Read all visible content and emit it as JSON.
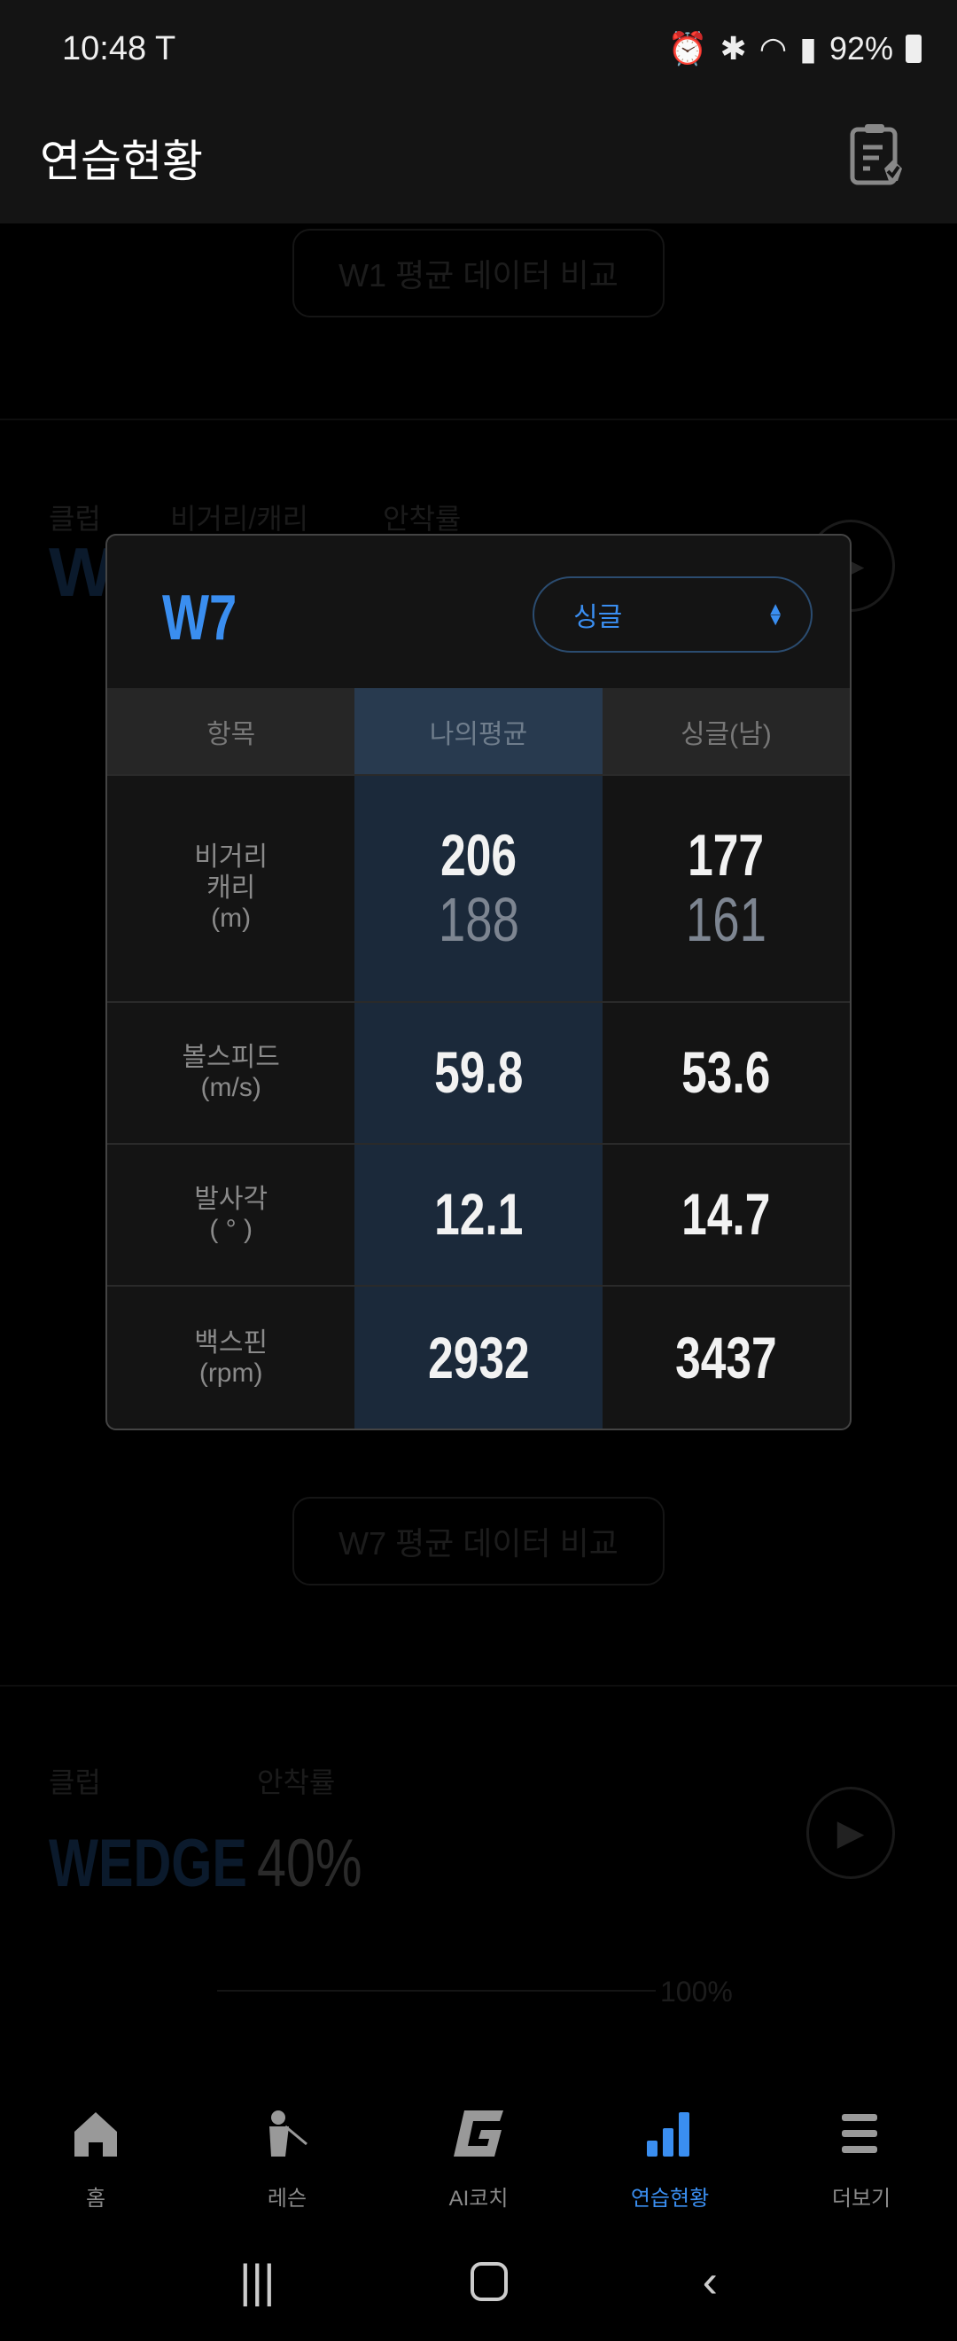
{
  "status_bar": {
    "time": "10:48",
    "battery": "92%",
    "icons": [
      "tesla-icon",
      "alarm-icon",
      "bluetooth-icon",
      "wifi-icon",
      "signal-icon",
      "battery-icon"
    ]
  },
  "header": {
    "title": "연습현황",
    "action_icon": "clipboard-check-icon"
  },
  "background": {
    "w1_compare_button": "W1 평균 데이터 비교",
    "w7_section": {
      "label_club": "클럽",
      "label_distance": "비거리/캐리",
      "label_accuracy": "안착률",
      "club": "W7"
    },
    "w7_compare_button": "W7 평균 데이터 비교",
    "wedge_section": {
      "label_club": "클럽",
      "label_accuracy": "안착률",
      "club": "WEDGE",
      "accuracy": "40%",
      "progress_label": "100%"
    }
  },
  "modal": {
    "club": "W7",
    "select": {
      "value": "싱글"
    },
    "columns": [
      "항목",
      "나의평균",
      "싱글(남)"
    ],
    "rows": [
      {
        "label": "비거리",
        "label2": "캐리",
        "unit": "(m)",
        "mine": "206",
        "mine_sub": "188",
        "ref": "177",
        "ref_sub": "161"
      },
      {
        "label": "볼스피드",
        "unit": "(m/s)",
        "mine": "59.8",
        "ref": "53.6"
      },
      {
        "label": "발사각",
        "unit": "( ° )",
        "mine": "12.1",
        "ref": "14.7"
      },
      {
        "label": "백스핀",
        "unit": "(rpm)",
        "mine": "2932",
        "ref": "3437"
      }
    ]
  },
  "bottom_nav": [
    {
      "label": "홈",
      "icon": "home-icon"
    },
    {
      "label": "레슨",
      "icon": "golfer-icon"
    },
    {
      "label": "AI코치",
      "icon": "g-logo-icon"
    },
    {
      "label": "연습현황",
      "icon": "bar-chart-icon",
      "active": true
    },
    {
      "label": "더보기",
      "icon": "menu-icon"
    }
  ],
  "colors": {
    "accent": "#3a8ef0",
    "background": "#000000",
    "modal": "#141414",
    "highlight_column": "#1b293a"
  }
}
